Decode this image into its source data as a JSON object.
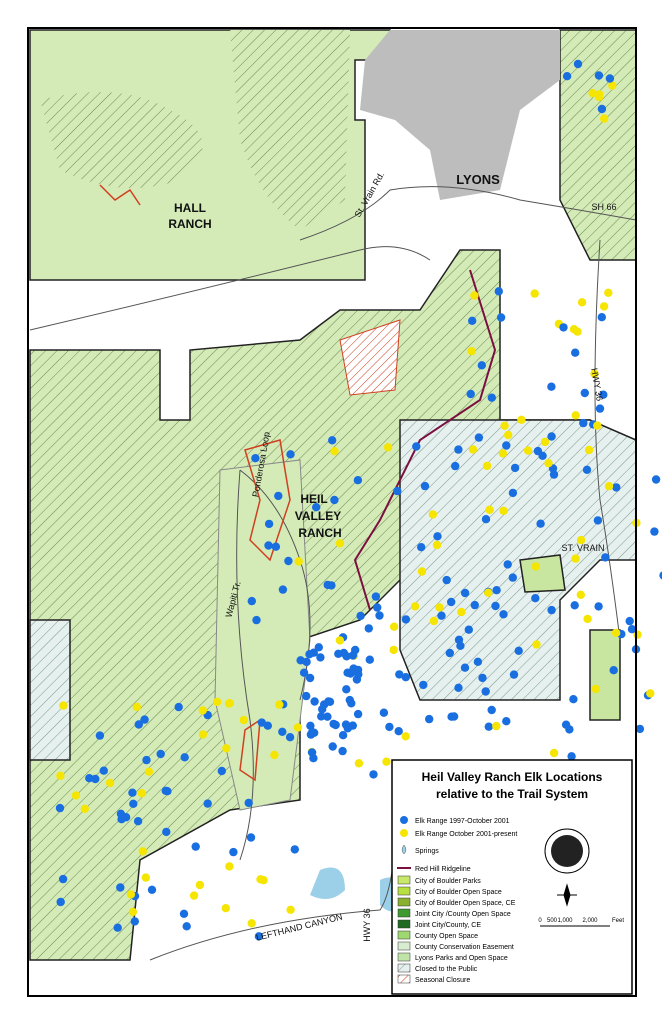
{
  "map": {
    "place_labels": [
      "HALL",
      "RANCH",
      "LYONS",
      "St. Vrain Rd.",
      "SH 66",
      "HEIL",
      "VALLEY",
      "RANCH",
      "Ponderosa Loop",
      "Wapiti Tr.",
      "HWY 36",
      "ST. VRAIN",
      "HWY 36",
      "LEFTHAND CANYON"
    ],
    "legend": {
      "title": [
        "Heil Valley Ranch Elk Locations",
        "relative to the Trail System"
      ],
      "items": [
        "Elk Range 1997-October 2001",
        "Elk Range October 2001-present",
        "Springs",
        "Red Hill Ridgeline",
        "City of Boulder Parks",
        "City of Boulder Open Space",
        "City of Boulder Open Space, CE",
        "Joint City /County Open Space",
        "Joint City/County, CE",
        "County Open Space",
        "County Conservation Easement",
        "Lyons Parks and Open Space",
        "Closed to the Public",
        "Seasonal Closure"
      ],
      "scale": [
        "0",
        "500",
        "1,000",
        "2,000",
        "Feet"
      ]
    }
  }
}
